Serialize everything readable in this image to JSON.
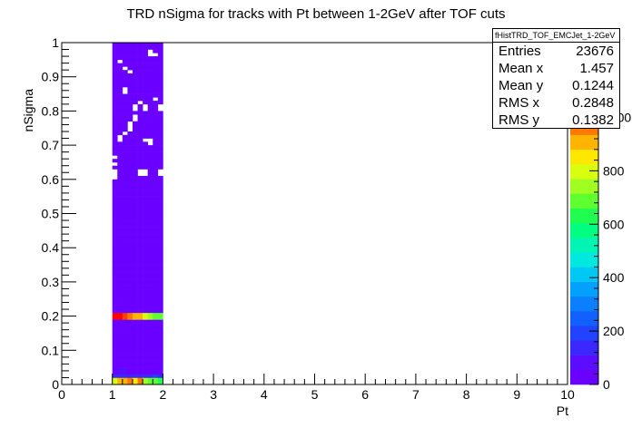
{
  "chart_data": {
    "type": "heatmap",
    "title": "TRD nSigma for tracks with Pt between 1-2GeV after TOF cuts",
    "xlabel": "Pt",
    "ylabel": "nSigma",
    "xlim": [
      0,
      10
    ],
    "ylim": [
      0,
      1
    ],
    "x_ticks": [
      "0",
      "1",
      "2",
      "3",
      "4",
      "5",
      "6",
      "7",
      "8",
      "9",
      "10"
    ],
    "y_ticks": [
      "0",
      "0.1",
      "0.2",
      "0.3",
      "0.4",
      "0.5",
      "0.6",
      "0.7",
      "0.8",
      "0.9",
      "1"
    ],
    "colorbar_ticks": [
      "0",
      "200",
      "400",
      "600",
      "800",
      "1000"
    ],
    "colorbar_range": [
      0,
      1100
    ],
    "x_bin_edges": [
      1.0,
      1.1,
      1.2,
      1.3,
      1.4,
      1.5,
      1.6,
      1.7,
      1.8,
      1.9,
      2.0
    ],
    "y_bin_width": 0.01,
    "cells_note_values_in_counts": true,
    "bands": [
      {
        "y_range": [
          0.0,
          0.02
        ],
        "values": [
          800,
          880,
          900,
          950,
          850,
          980,
          750,
          700,
          680,
          650
        ]
      },
      {
        "y_range": [
          0.02,
          0.03
        ],
        "values": [
          120,
          130,
          140,
          150,
          140,
          150,
          150,
          160,
          170,
          130
        ]
      },
      {
        "y_range": [
          0.03,
          0.05
        ],
        "values": [
          40,
          60,
          55,
          50,
          48,
          52,
          46,
          44,
          50,
          42
        ]
      },
      {
        "y_range": [
          0.05,
          0.07
        ],
        "values": [
          15,
          35,
          30,
          20,
          18,
          22,
          16,
          14,
          15,
          12
        ]
      },
      {
        "y_range": [
          0.18,
          0.19
        ],
        "values": [
          30,
          40,
          35,
          38,
          32,
          36,
          30,
          34,
          33,
          31
        ]
      },
      {
        "y_range": [
          0.19,
          0.21
        ],
        "values": [
          1050,
          1080,
          1020,
          980,
          900,
          880,
          820,
          750,
          700,
          680
        ]
      },
      {
        "y_range": [
          0.21,
          0.22
        ],
        "values": [
          30,
          32,
          34,
          36,
          30,
          33,
          31,
          32,
          30,
          29
        ]
      }
    ],
    "background_value": 5,
    "empty_cells": [
      [
        1.0,
        0.64
      ],
      [
        1.0,
        0.66
      ],
      [
        1.0,
        0.6
      ],
      [
        1.0,
        0.61
      ],
      [
        1.0,
        0.62
      ],
      [
        1.1,
        0.94
      ],
      [
        1.2,
        0.92
      ],
      [
        1.2,
        0.86
      ],
      [
        1.2,
        0.85
      ],
      [
        1.1,
        0.72
      ],
      [
        1.1,
        0.71
      ],
      [
        1.2,
        0.73
      ],
      [
        1.3,
        0.75
      ],
      [
        1.3,
        0.74
      ],
      [
        1.3,
        0.76
      ],
      [
        1.4,
        0.8
      ],
      [
        1.4,
        0.81
      ],
      [
        1.4,
        0.78
      ],
      [
        1.4,
        0.77
      ],
      [
        1.5,
        0.82
      ],
      [
        1.6,
        0.81
      ],
      [
        1.6,
        0.8
      ],
      [
        1.6,
        0.71
      ],
      [
        1.7,
        0.71
      ],
      [
        1.7,
        0.7
      ],
      [
        1.5,
        0.61
      ],
      [
        1.6,
        0.61
      ],
      [
        1.6,
        0.62
      ],
      [
        1.5,
        0.62
      ],
      [
        1.9,
        0.61
      ],
      [
        1.9,
        0.62
      ],
      [
        1.7,
        0.97
      ],
      [
        1.7,
        0.96
      ],
      [
        1.8,
        0.96
      ],
      [
        1.3,
        0.91
      ],
      [
        1.9,
        0.8
      ],
      [
        1.9,
        0.81
      ],
      [
        1.8,
        0.83
      ]
    ]
  },
  "stats": {
    "name": "fHistTRD_TOF_EMCJet_1-2GeV",
    "rows": [
      {
        "label": "Entries",
        "value": "23676"
      },
      {
        "label": "Mean x",
        "value": "1.457"
      },
      {
        "label": "Mean y",
        "value": "0.1244"
      },
      {
        "label": "RMS x",
        "value": "0.2848"
      },
      {
        "label": "RMS y",
        "value": "0.1382"
      }
    ]
  },
  "colors": {
    "background_cell": "#6a00ff",
    "palette": [
      "#6a00ff",
      "#5b0dff",
      "#3b28ff",
      "#2142ff",
      "#1160ff",
      "#0a80ff",
      "#02a0ff",
      "#00c8f5",
      "#00e8e0",
      "#00f5b4",
      "#00ff80",
      "#20ff50",
      "#60ff30",
      "#a0ff20",
      "#d8ff10",
      "#ffe800",
      "#ffb400",
      "#ff7800",
      "#ff3c00",
      "#ff0000"
    ]
  }
}
